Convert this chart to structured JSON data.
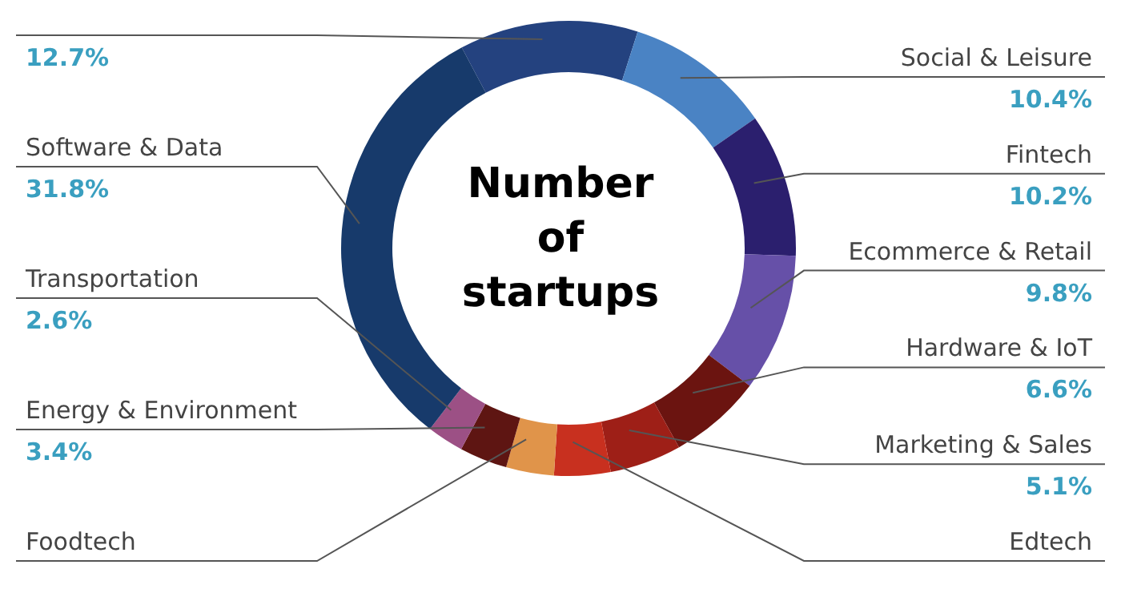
{
  "chart_data": {
    "type": "donut",
    "title": "Number of startups",
    "categories": [
      null,
      "Social & Leisure",
      "Fintech",
      "Ecommerce & Retail",
      "Hardware & IoT",
      "Marketing & Sales",
      "Edtech",
      "Foodtech",
      "Energy & Environment",
      "Transportation",
      "Software & Data"
    ],
    "values": [
      12.7,
      10.4,
      10.2,
      9.8,
      6.6,
      5.1,
      4.0,
      3.4,
      3.4,
      2.6,
      31.8
    ],
    "value_labels": [
      "12.7%",
      "10.4%",
      "10.2%",
      "9.8%",
      "6.6%",
      "5.1%",
      null,
      null,
      "3.4%",
      "2.6%",
      "31.8%"
    ],
    "colors": [
      "#24427f",
      "#4a83c4",
      "#2b1f6e",
      "#6650a8",
      "#6b1410",
      "#9e1f17",
      "#c8301f",
      "#e0944a",
      "#5e1512",
      "#9c5085",
      "#173a6b"
    ]
  }
}
